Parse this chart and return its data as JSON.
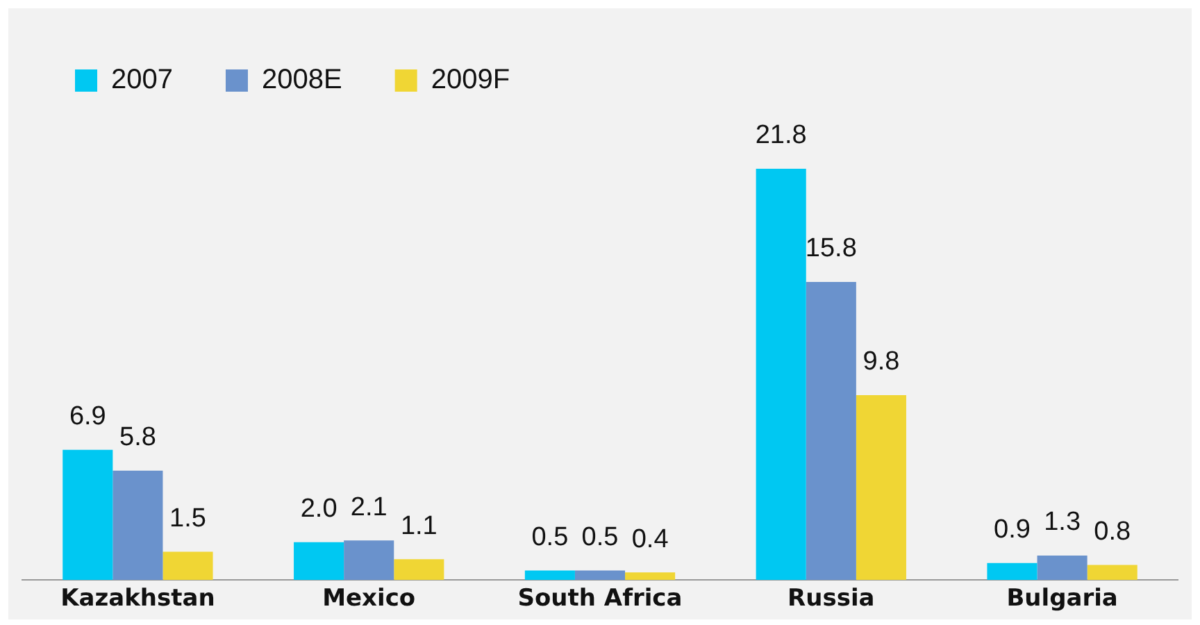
{
  "chart_data": {
    "type": "bar",
    "categories": [
      "Kazakhstan",
      "Mexico",
      "South Africa",
      "Russia",
      "Bulgaria"
    ],
    "series": [
      {
        "name": "2007",
        "color": "#00c8f2",
        "values": [
          6.9,
          2.0,
          0.5,
          21.8,
          0.9
        ],
        "value_labels": [
          "6.9",
          "2.0",
          "0.5",
          "21.8",
          "0.9"
        ]
      },
      {
        "name": "2008E",
        "color": "#6a92cc",
        "values": [
          5.8,
          2.1,
          0.5,
          15.8,
          1.3
        ],
        "value_labels": [
          "5.8",
          "2.1",
          "0.5",
          "15.8",
          "1.3"
        ]
      },
      {
        "name": "2009F",
        "color": "#f0d634",
        "values": [
          1.5,
          1.1,
          0.4,
          9.8,
          0.8
        ],
        "value_labels": [
          "1.5",
          "1.1",
          "0.4",
          "9.8",
          "0.8"
        ]
      }
    ],
    "legend": "top left",
    "grid": false
  }
}
